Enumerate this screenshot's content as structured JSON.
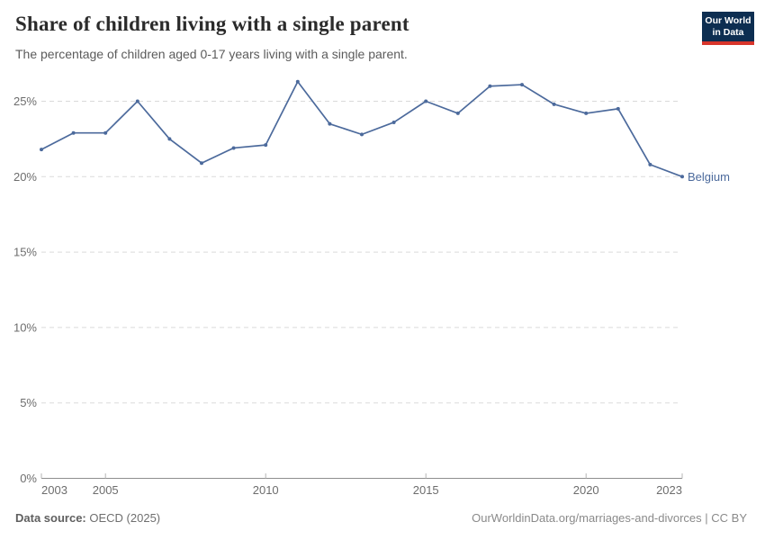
{
  "header": {
    "title": "Share of children living with a single parent",
    "subtitle": "The percentage of children aged 0-17 years living with a single parent.",
    "logo": {
      "line1": "Our World",
      "line2": "in Data",
      "bg_color": "#0d2e51",
      "accent_color": "#d8352b"
    }
  },
  "chart_data": {
    "type": "line",
    "title": "Share of children living with a single parent",
    "subtitle": "The percentage of children aged 0-17 years living with a single parent.",
    "x": [
      2003,
      2004,
      2005,
      2006,
      2007,
      2008,
      2009,
      2010,
      2011,
      2012,
      2013,
      2014,
      2015,
      2016,
      2017,
      2018,
      2019,
      2020,
      2021,
      2022,
      2023
    ],
    "series": [
      {
        "name": "Belgium",
        "color": "#4c6a9c",
        "values": [
          21.8,
          22.9,
          22.9,
          25.0,
          22.5,
          20.9,
          21.9,
          22.1,
          26.3,
          23.5,
          22.8,
          23.6,
          25.0,
          24.2,
          26.0,
          26.1,
          24.8,
          24.2,
          24.5,
          20.8,
          20.0
        ]
      }
    ],
    "xlabel": "",
    "ylabel": "",
    "y_unit": "%",
    "ylim": [
      0,
      27
    ],
    "yticks": [
      0,
      5,
      10,
      15,
      20,
      25
    ],
    "ytick_format": "{v}%",
    "xticks": [
      2003,
      2005,
      2010,
      2015,
      2020,
      2023
    ],
    "grid": "horizontal-dashed",
    "legend_position": "end-of-line-label"
  },
  "footer": {
    "source_label": "Data source:",
    "source_value": "OECD (2025)",
    "credit": "OurWorldinData.org/marriages-and-divorces | CC BY"
  }
}
